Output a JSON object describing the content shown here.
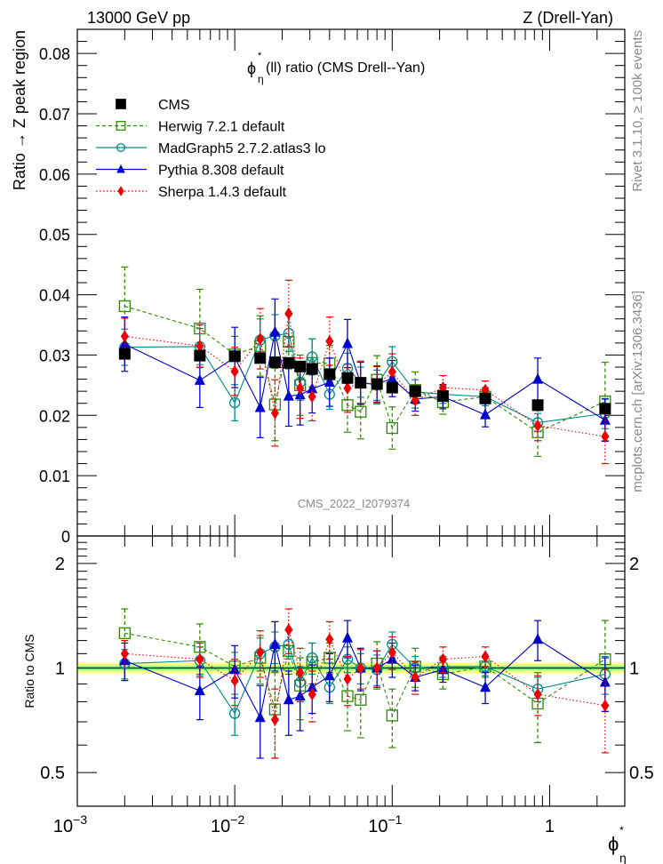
{
  "chart_data": {
    "type": "scatter",
    "header_left": "13000 GeV pp",
    "header_right": "Z (Drell-Yan)",
    "title": "φ*η(ll) ratio (CMS Drell--Yan)",
    "title_parts": {
      "phi": "ϕ",
      "sup": "*",
      "sub": "η",
      "rest": "(ll) ratio (CMS Drell--Yan)"
    },
    "analysis_id": "CMS_2022_I2079374",
    "side_text_top": "Rivet 3.1.10, ≥ 100k events",
    "side_text_bottom": "mcplots.cern.ch [arXiv:1306.3436]",
    "xlabel": {
      "phi": "ϕ",
      "sup": "*",
      "sub": "η"
    },
    "xscale": "log",
    "xlim": [
      0.001,
      3.0
    ],
    "x_ticks": [
      {
        "base": "10",
        "exp": "−3"
      },
      {
        "base": "10",
        "exp": "−2"
      },
      {
        "base": "10",
        "exp": "−1"
      },
      {
        "base": "1",
        "exp": ""
      }
    ],
    "main": {
      "ylabel": "Ratio → Z peak region",
      "ylim": [
        0,
        0.084
      ],
      "y_ticks": [
        "0",
        "0.01",
        "0.02",
        "0.03",
        "0.04",
        "0.05",
        "0.06",
        "0.07",
        "0.08"
      ],
      "legend_position": "top-left"
    },
    "ratio": {
      "ylabel": "Ratio to CMS",
      "yscale": "log",
      "ylim": [
        0.4,
        2.4
      ],
      "y_ticks": [
        "0.5",
        "1",
        "2"
      ],
      "band_color_outer": "#ffff88",
      "band_color_inner": "#88ff88"
    },
    "x": [
      0.002,
      0.006,
      0.01,
      0.0145,
      0.018,
      0.022,
      0.026,
      0.031,
      0.04,
      0.052,
      0.063,
      0.08,
      0.1,
      0.14,
      0.21,
      0.39,
      0.84,
      2.25
    ],
    "series": [
      {
        "name": "CMS",
        "style": "data",
        "color": "#000000",
        "values": [
          0.0302,
          0.0299,
          0.0298,
          0.0295,
          0.0288,
          0.0287,
          0.0281,
          0.0277,
          0.0268,
          0.0262,
          0.0254,
          0.0252,
          0.0246,
          0.024,
          0.0232,
          0.0228,
          0.0217,
          0.0211
        ],
        "errors": [
          0.0005,
          0.0005,
          0.0005,
          0.0005,
          0.0005,
          0.0005,
          0.0005,
          0.0005,
          0.0004,
          0.0004,
          0.0004,
          0.0004,
          0.0004,
          0.0004,
          0.0004,
          0.0004,
          0.0004,
          0.0004
        ],
        "ratio": [
          1,
          1,
          1,
          1,
          1,
          1,
          1,
          1,
          1,
          1,
          1,
          1,
          1,
          1,
          1,
          1,
          1,
          1
        ],
        "ratio_band": [
          0.02,
          0.02,
          0.02,
          0.02,
          0.02,
          0.02,
          0.02,
          0.02,
          0.02,
          0.02,
          0.02,
          0.02,
          0.02,
          0.02,
          0.02,
          0.02,
          0.02,
          0.02
        ]
      },
      {
        "name": "Herwig 7.2.1 default",
        "style": "dashed",
        "marker": "open-square",
        "color": "#2e8b00",
        "values": [
          0.0381,
          0.0344,
          0.0301,
          0.0315,
          0.0218,
          0.0322,
          0.025,
          0.0287,
          0.0286,
          0.0217,
          0.0206,
          0.0259,
          0.0179,
          0.0242,
          0.0222,
          0.0231,
          0.0172,
          0.0223
        ],
        "errors": [
          0.0065,
          0.0065,
          0.003,
          0.005,
          0.006,
          0.0045,
          0.005,
          0.004,
          0.003,
          0.0045,
          0.0045,
          0.004,
          0.0035,
          0.003,
          0.002,
          0.0015,
          0.004,
          0.0065
        ],
        "ratio": [
          1.26,
          1.15,
          1.01,
          1.07,
          0.76,
          1.12,
          0.89,
          1.04,
          1.07,
          0.83,
          0.81,
          1.03,
          0.73,
          1.01,
          0.96,
          1.01,
          0.79,
          1.06
        ],
        "ratio_err": [
          0.22,
          0.19,
          0.1,
          0.17,
          0.21,
          0.16,
          0.18,
          0.14,
          0.11,
          0.17,
          0.18,
          0.16,
          0.14,
          0.13,
          0.09,
          0.07,
          0.18,
          0.31
        ]
      },
      {
        "name": "MadGraph5 2.7.2.atlas3 lo",
        "style": "solid",
        "marker": "open-circle",
        "color": "#008b8b",
        "values": [
          0.0313,
          0.0314,
          0.0221,
          0.0325,
          0.0332,
          0.0336,
          0.0255,
          0.0297,
          0.0235,
          0.0278,
          0.0255,
          0.025,
          0.0289,
          0.0239,
          0.0235,
          0.0231,
          0.0188,
          0.0203
        ],
        "errors": [
          0.003,
          0.003,
          0.003,
          0.0035,
          0.0035,
          0.003,
          0.003,
          0.003,
          0.0025,
          0.0025,
          0.0025,
          0.0025,
          0.0025,
          0.002,
          0.0015,
          0.0015,
          0.0015,
          0.0025
        ],
        "ratio": [
          1.03,
          1.05,
          0.74,
          1.1,
          1.15,
          1.17,
          0.91,
          1.07,
          0.88,
          1.06,
          1.0,
          0.99,
          1.17,
          1.0,
          1.01,
          1.01,
          0.87,
          0.96
        ],
        "ratio_err": [
          0.1,
          0.1,
          0.1,
          0.12,
          0.12,
          0.11,
          0.1,
          0.11,
          0.09,
          0.09,
          0.1,
          0.1,
          0.1,
          0.08,
          0.07,
          0.06,
          0.07,
          0.12
        ]
      },
      {
        "name": "Pythia 8.308 default",
        "style": "solid",
        "marker": "filled-triangle",
        "color": "#0000cc",
        "values": [
          0.0318,
          0.0258,
          0.0296,
          0.0213,
          0.0338,
          0.0232,
          0.0234,
          0.0244,
          0.0255,
          0.0319,
          0.0253,
          0.0252,
          0.0261,
          0.0227,
          0.0231,
          0.0201,
          0.026,
          0.0192
        ],
        "errors": [
          0.0045,
          0.0045,
          0.005,
          0.005,
          0.0055,
          0.005,
          0.005,
          0.004,
          0.004,
          0.004,
          0.0035,
          0.003,
          0.003,
          0.002,
          0.002,
          0.002,
          0.0035,
          0.0035
        ],
        "ratio": [
          1.05,
          0.86,
          0.99,
          0.72,
          1.17,
          0.81,
          0.83,
          0.88,
          0.95,
          1.22,
          1.0,
          1.0,
          1.06,
          0.94,
          0.99,
          0.88,
          1.21,
          0.91
        ],
        "ratio_err": [
          0.13,
          0.15,
          0.17,
          0.17,
          0.19,
          0.17,
          0.17,
          0.14,
          0.15,
          0.15,
          0.14,
          0.12,
          0.12,
          0.08,
          0.08,
          0.09,
          0.16,
          0.16
        ]
      },
      {
        "name": "Sherpa 1.4.3 default",
        "style": "dotted",
        "marker": "filled-diamond",
        "color": "#ee0000",
        "values": [
          0.0331,
          0.0315,
          0.0273,
          0.0327,
          0.0204,
          0.0369,
          0.0245,
          0.0231,
          0.0323,
          0.0245,
          0.0255,
          0.0251,
          0.0272,
          0.0225,
          0.0246,
          0.0242,
          0.0183,
          0.0165
        ],
        "errors": [
          0.003,
          0.0035,
          0.004,
          0.005,
          0.0055,
          0.0055,
          0.005,
          0.004,
          0.004,
          0.004,
          0.0035,
          0.003,
          0.003,
          0.0025,
          0.002,
          0.0015,
          0.0025,
          0.0045
        ],
        "ratio": [
          1.1,
          1.06,
          0.92,
          1.11,
          0.71,
          1.29,
          0.97,
          0.84,
          1.21,
          0.93,
          1.0,
          1.0,
          1.11,
          0.94,
          1.06,
          1.08,
          0.84,
          0.78
        ],
        "ratio_err": [
          0.1,
          0.12,
          0.14,
          0.17,
          0.16,
          0.19,
          0.17,
          0.14,
          0.15,
          0.15,
          0.13,
          0.12,
          0.12,
          0.1,
          0.09,
          0.07,
          0.11,
          0.21
        ]
      }
    ]
  }
}
